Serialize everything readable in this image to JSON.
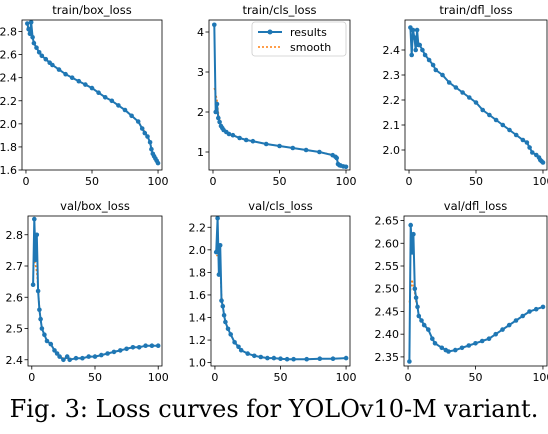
{
  "caption": "Fig. 3: Loss curves for YOLOv10-M variant.",
  "colors": {
    "results": "#1f77b4",
    "smooth": "#ff7f0e"
  },
  "legend": {
    "results_label": "results",
    "smooth_label": "smooth"
  },
  "chart_data": [
    {
      "type": "line",
      "title": "train/box_loss",
      "xlabel": "",
      "ylabel": "",
      "xlim": [
        -3,
        103
      ],
      "ylim": [
        1.6,
        2.9
      ],
      "xticks": [
        0,
        50,
        100
      ],
      "yticks": [
        1.6,
        1.8,
        2.0,
        2.2,
        2.4,
        2.6,
        2.8
      ],
      "ytick_labels": [
        "1.6",
        "1.8",
        "2.0",
        "2.2",
        "2.4",
        "2.6",
        "2.8"
      ],
      "legend": false,
      "series": [
        {
          "name": "results",
          "x": [
            1,
            2,
            3,
            4,
            5,
            6,
            8,
            10,
            12,
            15,
            18,
            20,
            25,
            30,
            35,
            40,
            45,
            50,
            55,
            60,
            65,
            70,
            75,
            80,
            85,
            88,
            90,
            92,
            94,
            95,
            96,
            97,
            98,
            99,
            100
          ],
          "y": [
            2.87,
            2.82,
            2.78,
            2.88,
            2.75,
            2.7,
            2.66,
            2.62,
            2.59,
            2.56,
            2.53,
            2.51,
            2.47,
            2.43,
            2.4,
            2.37,
            2.34,
            2.31,
            2.27,
            2.23,
            2.2,
            2.16,
            2.12,
            2.07,
            2.02,
            1.96,
            1.92,
            1.89,
            1.84,
            1.78,
            1.74,
            1.72,
            1.7,
            1.68,
            1.66
          ]
        },
        {
          "name": "smooth",
          "x": [
            1,
            2,
            3,
            4,
            5,
            6,
            8,
            10,
            12,
            15,
            18,
            20,
            25,
            30,
            35,
            40,
            45,
            50,
            55,
            60,
            65,
            70,
            75,
            80,
            85,
            88,
            90,
            92,
            94,
            95,
            96,
            97,
            98,
            99,
            100
          ],
          "y": [
            2.84,
            2.82,
            2.8,
            2.79,
            2.75,
            2.7,
            2.66,
            2.62,
            2.59,
            2.56,
            2.53,
            2.51,
            2.47,
            2.43,
            2.4,
            2.37,
            2.34,
            2.31,
            2.27,
            2.23,
            2.2,
            2.16,
            2.12,
            2.07,
            2.02,
            1.97,
            1.93,
            1.89,
            1.84,
            1.79,
            1.75,
            1.72,
            1.7,
            1.68,
            1.67
          ]
        }
      ]
    },
    {
      "type": "line",
      "title": "train/cls_loss",
      "xlabel": "",
      "ylabel": "",
      "xlim": [
        -3,
        103
      ],
      "ylim": [
        0.55,
        4.3
      ],
      "xticks": [
        0,
        50,
        100
      ],
      "yticks": [
        1,
        2,
        3,
        4
      ],
      "ytick_labels": [
        "1",
        "2",
        "3",
        "4"
      ],
      "legend": true,
      "series": [
        {
          "name": "results",
          "x": [
            1,
            2,
            3,
            4,
            5,
            6,
            7,
            8,
            10,
            12,
            15,
            20,
            25,
            30,
            40,
            50,
            60,
            70,
            80,
            90,
            92,
            93,
            94,
            95,
            96,
            98,
            100
          ],
          "y": [
            4.18,
            2.0,
            2.2,
            1.85,
            1.75,
            1.65,
            1.6,
            1.55,
            1.5,
            1.45,
            1.42,
            1.35,
            1.3,
            1.27,
            1.2,
            1.15,
            1.1,
            1.05,
            1.0,
            0.92,
            0.88,
            0.85,
            0.7,
            0.67,
            0.66,
            0.64,
            0.63
          ]
        },
        {
          "name": "smooth",
          "x": [
            1,
            2,
            3,
            4,
            5,
            6,
            7,
            8,
            10,
            12,
            15,
            20,
            25,
            30,
            40,
            50,
            60,
            70,
            80,
            90,
            92,
            93,
            94,
            95,
            96,
            98,
            100
          ],
          "y": [
            2.6,
            2.45,
            2.3,
            2.0,
            1.8,
            1.68,
            1.62,
            1.56,
            1.5,
            1.46,
            1.42,
            1.35,
            1.3,
            1.27,
            1.2,
            1.15,
            1.1,
            1.05,
            1.0,
            0.93,
            0.89,
            0.84,
            0.75,
            0.69,
            0.67,
            0.65,
            0.64
          ]
        }
      ]
    },
    {
      "type": "line",
      "title": "train/dfl_loss",
      "xlabel": "",
      "ylabel": "",
      "xlim": [
        -3,
        103
      ],
      "ylim": [
        1.92,
        2.52
      ],
      "xticks": [
        0,
        50,
        100
      ],
      "yticks": [
        2.0,
        2.1,
        2.2,
        2.3,
        2.4
      ],
      "ytick_labels": [
        "2.0",
        "2.1",
        "2.2",
        "2.3",
        "2.4"
      ],
      "legend": false,
      "series": [
        {
          "name": "results",
          "x": [
            1,
            2,
            3,
            4,
            5,
            6,
            7,
            8,
            10,
            12,
            15,
            18,
            20,
            25,
            30,
            35,
            40,
            45,
            50,
            55,
            60,
            65,
            70,
            75,
            80,
            85,
            88,
            90,
            92,
            95,
            97,
            98,
            99,
            100
          ],
          "y": [
            2.49,
            2.38,
            2.48,
            2.45,
            2.4,
            2.48,
            2.42,
            2.42,
            2.4,
            2.38,
            2.36,
            2.34,
            2.32,
            2.3,
            2.27,
            2.25,
            2.23,
            2.21,
            2.19,
            2.16,
            2.14,
            2.12,
            2.1,
            2.08,
            2.06,
            2.04,
            2.03,
            2.01,
            1.99,
            1.98,
            1.97,
            1.96,
            1.955,
            1.95
          ]
        },
        {
          "name": "smooth",
          "x": [
            1,
            2,
            3,
            4,
            5,
            6,
            7,
            8,
            10,
            12,
            15,
            18,
            20,
            25,
            30,
            35,
            40,
            45,
            50,
            55,
            60,
            65,
            70,
            75,
            80,
            85,
            88,
            90,
            92,
            95,
            97,
            98,
            99,
            100
          ],
          "y": [
            2.44,
            2.44,
            2.45,
            2.45,
            2.44,
            2.44,
            2.43,
            2.42,
            2.4,
            2.38,
            2.36,
            2.34,
            2.32,
            2.3,
            2.27,
            2.25,
            2.23,
            2.21,
            2.19,
            2.16,
            2.14,
            2.12,
            2.1,
            2.08,
            2.06,
            2.04,
            2.03,
            2.01,
            1.99,
            1.98,
            1.97,
            1.96,
            1.955,
            1.95
          ]
        }
      ]
    },
    {
      "type": "line",
      "title": "val/box_loss",
      "xlabel": "",
      "ylabel": "",
      "xlim": [
        -3,
        103
      ],
      "ylim": [
        2.38,
        2.86
      ],
      "xticks": [
        0,
        50,
        100
      ],
      "yticks": [
        2.4,
        2.5,
        2.6,
        2.7,
        2.8
      ],
      "ytick_labels": [
        "2.4",
        "2.5",
        "2.6",
        "2.7",
        "2.8"
      ],
      "legend": false,
      "series": [
        {
          "name": "results",
          "x": [
            1,
            2,
            3,
            4,
            5,
            6,
            7,
            8,
            10,
            12,
            15,
            18,
            20,
            22,
            25,
            28,
            30,
            35,
            40,
            45,
            50,
            55,
            60,
            65,
            70,
            75,
            80,
            85,
            90,
            95,
            100
          ],
          "y": [
            2.64,
            2.85,
            2.72,
            2.8,
            2.62,
            2.56,
            2.53,
            2.5,
            2.48,
            2.46,
            2.45,
            2.43,
            2.42,
            2.41,
            2.4,
            2.41,
            2.4,
            2.405,
            2.405,
            2.41,
            2.41,
            2.415,
            2.42,
            2.425,
            2.43,
            2.435,
            2.44,
            2.44,
            2.445,
            2.445,
            2.445
          ]
        },
        {
          "name": "smooth",
          "x": [
            1,
            2,
            3,
            4,
            5,
            6,
            7,
            8,
            10,
            12,
            15,
            18,
            20,
            22,
            25,
            28,
            30,
            35,
            40,
            45,
            50,
            55,
            60,
            65,
            70,
            75,
            80,
            85,
            90,
            95,
            100
          ],
          "y": [
            2.7,
            2.72,
            2.7,
            2.68,
            2.63,
            2.57,
            2.53,
            2.5,
            2.48,
            2.46,
            2.45,
            2.43,
            2.42,
            2.41,
            2.405,
            2.405,
            2.403,
            2.405,
            2.405,
            2.41,
            2.41,
            2.415,
            2.42,
            2.425,
            2.43,
            2.435,
            2.44,
            2.44,
            2.445,
            2.445,
            2.445
          ]
        }
      ]
    },
    {
      "type": "line",
      "title": "val/cls_loss",
      "xlabel": "",
      "ylabel": "",
      "xlim": [
        -3,
        103
      ],
      "ylim": [
        0.97,
        2.3
      ],
      "xticks": [
        0,
        50,
        100
      ],
      "yticks": [
        1.0,
        1.2,
        1.4,
        1.6,
        1.8,
        2.0,
        2.2
      ],
      "ytick_labels": [
        "1.0",
        "1.2",
        "1.4",
        "1.6",
        "1.8",
        "2.0",
        "2.2"
      ],
      "legend": false,
      "series": [
        {
          "name": "results",
          "x": [
            1,
            2,
            3,
            4,
            5,
            6,
            7,
            8,
            10,
            12,
            15,
            18,
            20,
            25,
            30,
            35,
            40,
            45,
            50,
            55,
            60,
            70,
            80,
            90,
            100
          ],
          "y": [
            1.98,
            2.28,
            1.78,
            2.04,
            1.55,
            1.5,
            1.42,
            1.36,
            1.3,
            1.25,
            1.18,
            1.14,
            1.11,
            1.08,
            1.06,
            1.05,
            1.04,
            1.04,
            1.035,
            1.03,
            1.03,
            1.03,
            1.035,
            1.035,
            1.04
          ]
        },
        {
          "name": "smooth",
          "x": [
            1,
            2,
            3,
            4,
            5,
            6,
            7,
            8,
            10,
            12,
            15,
            18,
            20,
            25,
            30,
            35,
            40,
            45,
            50,
            55,
            60,
            70,
            80,
            90,
            100
          ],
          "y": [
            1.95,
            1.95,
            1.9,
            1.82,
            1.6,
            1.5,
            1.42,
            1.36,
            1.3,
            1.25,
            1.18,
            1.14,
            1.11,
            1.08,
            1.06,
            1.05,
            1.04,
            1.04,
            1.035,
            1.03,
            1.03,
            1.03,
            1.035,
            1.035,
            1.04
          ]
        }
      ]
    },
    {
      "type": "line",
      "title": "val/dfl_loss",
      "xlabel": "",
      "ylabel": "",
      "xlim": [
        -3,
        103
      ],
      "ylim": [
        2.33,
        2.66
      ],
      "xticks": [
        0,
        50,
        100
      ],
      "yticks": [
        2.35,
        2.4,
        2.45,
        2.5,
        2.55,
        2.6,
        2.65
      ],
      "ytick_labels": [
        "2.35",
        "2.40",
        "2.45",
        "2.50",
        "2.55",
        "2.60",
        "2.65"
      ],
      "legend": false,
      "series": [
        {
          "name": "results",
          "x": [
            1,
            2,
            3,
            4,
            5,
            6,
            7,
            8,
            10,
            12,
            15,
            18,
            20,
            25,
            28,
            30,
            35,
            40,
            45,
            50,
            55,
            60,
            65,
            70,
            75,
            80,
            85,
            90,
            95,
            100
          ],
          "y": [
            2.34,
            2.64,
            2.58,
            2.62,
            2.5,
            2.48,
            2.46,
            2.44,
            2.43,
            2.42,
            2.41,
            2.39,
            2.38,
            2.37,
            2.365,
            2.362,
            2.365,
            2.37,
            2.375,
            2.38,
            2.385,
            2.39,
            2.4,
            2.41,
            2.42,
            2.43,
            2.44,
            2.45,
            2.455,
            2.46
          ]
        },
        {
          "name": "smooth",
          "x": [
            1,
            2,
            3,
            4,
            5,
            6,
            7,
            8,
            10,
            12,
            15,
            18,
            20,
            25,
            28,
            30,
            35,
            40,
            45,
            50,
            55,
            60,
            65,
            70,
            75,
            80,
            85,
            90,
            95,
            100
          ],
          "y": [
            2.47,
            2.5,
            2.52,
            2.5,
            2.49,
            2.47,
            2.46,
            2.44,
            2.43,
            2.42,
            2.41,
            2.39,
            2.38,
            2.37,
            2.365,
            2.363,
            2.365,
            2.37,
            2.375,
            2.38,
            2.385,
            2.39,
            2.4,
            2.41,
            2.42,
            2.43,
            2.44,
            2.45,
            2.455,
            2.46
          ]
        }
      ]
    }
  ]
}
